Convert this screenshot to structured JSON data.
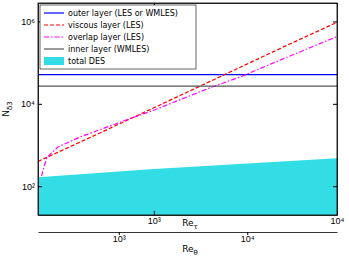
{
  "chart_data": {
    "type": "line",
    "log": true,
    "xlabel": "Reτ",
    "x2label": "Reθ",
    "ylabel": "Nδ3",
    "xlim": [
      233,
      10000
    ],
    "xticks": [
      {
        "value": 1000,
        "label": "10³"
      },
      {
        "value": 10000,
        "label": "10⁴"
      }
    ],
    "x2lim": [
      235,
      50000
    ],
    "x2ticks": [
      {
        "value": 1000,
        "label": "10³"
      },
      {
        "value": 10000,
        "label": "10⁴"
      }
    ],
    "ylim": [
      20,
      2800000
    ],
    "yticks": [
      {
        "value": 100,
        "label": "10²"
      },
      {
        "value": 10000,
        "label": "10⁴"
      },
      {
        "value": 1000000,
        "label": "10⁶"
      }
    ],
    "legend": "upper left",
    "series": [
      {
        "name": "outer layer (LES or WMLES)",
        "type": "line",
        "color": "#0000ff",
        "line_style": "solid",
        "x": [
          233,
          10000
        ],
        "values": [
          51000,
          51000
        ]
      },
      {
        "name": "viscous layer (LES)",
        "type": "line",
        "color": "#ff0000",
        "line_style": "dashed",
        "x": [
          233,
          500,
          1000,
          2000,
          5000,
          10000
        ],
        "values": [
          400,
          1900,
          8000,
          34000,
          230000,
          950000
        ]
      },
      {
        "name": "overlap layer (LES)",
        "type": "line",
        "color": "#ff00ff",
        "line_style": "dashdot",
        "x": [
          235,
          260,
          300,
          400,
          500,
          700,
          1000,
          2000,
          3000,
          5000,
          10000
        ],
        "values": [
          100,
          500,
          900,
          1600,
          2300,
          4000,
          7000,
          24000,
          46000,
          120000,
          430000
        ]
      },
      {
        "name": "inner layer (WMLES)",
        "type": "line",
        "color": "#555555",
        "line_style": "solid",
        "x": [
          233,
          10000
        ],
        "values": [
          27000,
          27000
        ]
      },
      {
        "name": "total DES",
        "type": "area",
        "color": "#33dde6",
        "x": [
          233,
          1000,
          10000
        ],
        "values": [
          165,
          260,
          480
        ],
        "lower": [
          20,
          20,
          20
        ]
      }
    ]
  }
}
